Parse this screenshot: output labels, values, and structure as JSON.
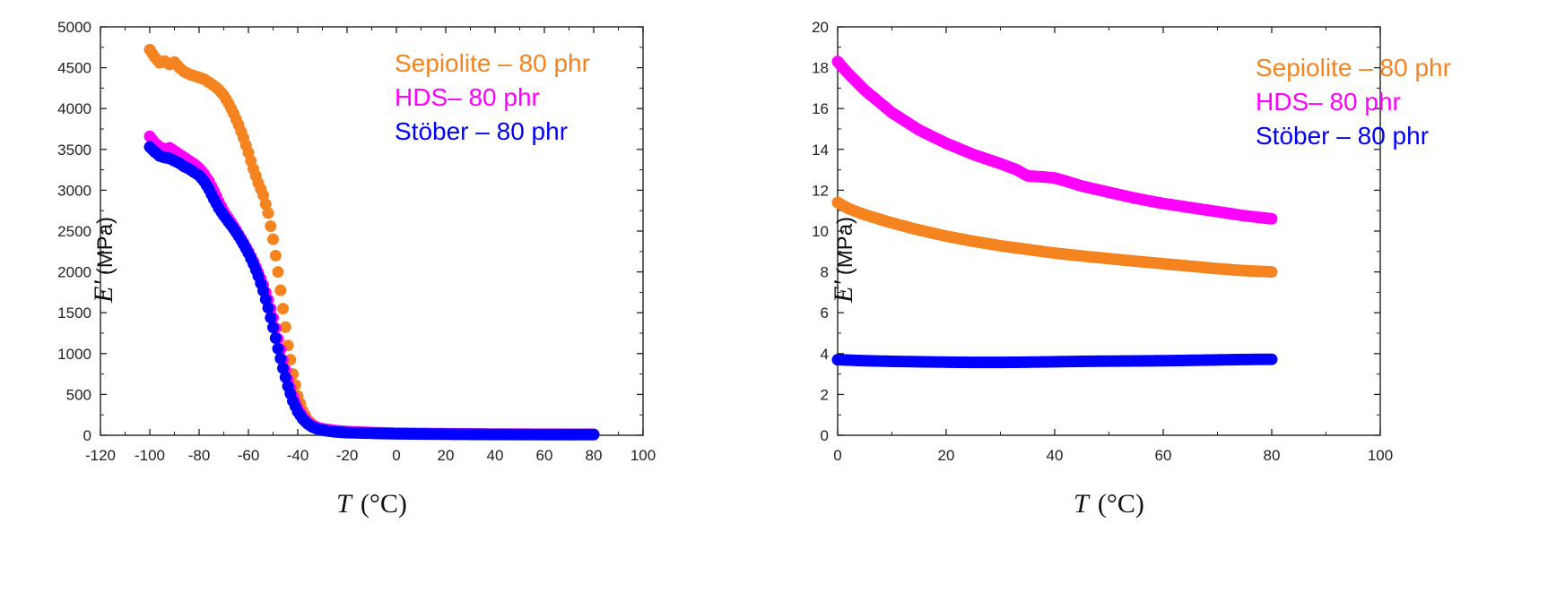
{
  "chart_data": [
    {
      "type": "scatter",
      "xlabel": {
        "symbol": "T",
        "unit": "(°C)"
      },
      "ylabel": {
        "symbol": "E'",
        "unit": "(MPa)"
      },
      "xlim": [
        -120,
        100
      ],
      "ylim": [
        0,
        5000
      ],
      "xticks": [
        -120,
        -100,
        -80,
        -60,
        -40,
        -20,
        0,
        20,
        40,
        60,
        80,
        100
      ],
      "yticks": [
        0,
        500,
        1000,
        1500,
        2000,
        2500,
        3000,
        3500,
        4000,
        4500,
        5000
      ],
      "legend_position": "top-center",
      "series": [
        {
          "name": "Sepiolite – 80 phr",
          "color": "#F5831F",
          "points": [
            [
              -100,
              4720
            ],
            [
              -98,
              4630
            ],
            [
              -96,
              4560
            ],
            [
              -94,
              4580
            ],
            [
              -92,
              4540
            ],
            [
              -90,
              4570
            ],
            [
              -88,
              4500
            ],
            [
              -86,
              4450
            ],
            [
              -84,
              4420
            ],
            [
              -82,
              4400
            ],
            [
              -80,
              4380
            ],
            [
              -78,
              4360
            ],
            [
              -76,
              4320
            ],
            [
              -74,
              4280
            ],
            [
              -72,
              4230
            ],
            [
              -70,
              4160
            ],
            [
              -68,
              4060
            ],
            [
              -66,
              3940
            ],
            [
              -64,
              3800
            ],
            [
              -62,
              3640
            ],
            [
              -60,
              3460
            ],
            [
              -58,
              3260
            ],
            [
              -56,
              3090
            ],
            [
              -54,
              2940
            ],
            [
              -52,
              2720
            ],
            [
              -50,
              2400
            ],
            [
              -48,
              2000
            ],
            [
              -46,
              1550
            ],
            [
              -44,
              1100
            ],
            [
              -42,
              750
            ],
            [
              -40,
              480
            ],
            [
              -38,
              300
            ],
            [
              -36,
              190
            ],
            [
              -34,
              130
            ],
            [
              -32,
              95
            ],
            [
              -30,
              75
            ],
            [
              -25,
              50
            ],
            [
              -20,
              38
            ],
            [
              -10,
              28
            ],
            [
              0,
              22
            ],
            [
              20,
              16
            ],
            [
              40,
              12
            ],
            [
              60,
              10
            ],
            [
              80,
              10
            ]
          ]
        },
        {
          "name": "HDS– 80 phr",
          "color": "#FF00FF",
          "points": [
            [
              -100,
              3660
            ],
            [
              -98,
              3580
            ],
            [
              -96,
              3530
            ],
            [
              -94,
              3500
            ],
            [
              -92,
              3520
            ],
            [
              -90,
              3480
            ],
            [
              -88,
              3440
            ],
            [
              -86,
              3400
            ],
            [
              -84,
              3360
            ],
            [
              -82,
              3320
            ],
            [
              -80,
              3270
            ],
            [
              -78,
              3200
            ],
            [
              -76,
              3110
            ],
            [
              -74,
              2990
            ],
            [
              -72,
              2860
            ],
            [
              -70,
              2740
            ],
            [
              -68,
              2650
            ],
            [
              -66,
              2560
            ],
            [
              -64,
              2460
            ],
            [
              -62,
              2360
            ],
            [
              -60,
              2250
            ],
            [
              -58,
              2130
            ],
            [
              -56,
              1990
            ],
            [
              -54,
              1840
            ],
            [
              -52,
              1660
            ],
            [
              -50,
              1440
            ],
            [
              -48,
              1180
            ],
            [
              -46,
              920
            ],
            [
              -44,
              680
            ],
            [
              -42,
              480
            ],
            [
              -40,
              330
            ],
            [
              -38,
              230
            ],
            [
              -36,
              160
            ],
            [
              -34,
              120
            ],
            [
              -32,
              95
            ],
            [
              -30,
              80
            ],
            [
              -25,
              58
            ],
            [
              -20,
              45
            ],
            [
              -10,
              33
            ],
            [
              0,
              25
            ],
            [
              20,
              18
            ],
            [
              40,
              14
            ],
            [
              60,
              12
            ],
            [
              80,
              11
            ]
          ]
        },
        {
          "name": "Stöber – 80 phr",
          "color": "#0000FF",
          "points": [
            [
              -100,
              3530
            ],
            [
              -98,
              3470
            ],
            [
              -96,
              3420
            ],
            [
              -94,
              3400
            ],
            [
              -92,
              3390
            ],
            [
              -90,
              3360
            ],
            [
              -88,
              3330
            ],
            [
              -86,
              3290
            ],
            [
              -84,
              3260
            ],
            [
              -82,
              3220
            ],
            [
              -80,
              3180
            ],
            [
              -78,
              3110
            ],
            [
              -76,
              3010
            ],
            [
              -74,
              2890
            ],
            [
              -72,
              2780
            ],
            [
              -70,
              2690
            ],
            [
              -68,
              2610
            ],
            [
              -66,
              2530
            ],
            [
              -64,
              2440
            ],
            [
              -62,
              2340
            ],
            [
              -60,
              2230
            ],
            [
              -58,
              2100
            ],
            [
              -56,
              1950
            ],
            [
              -54,
              1770
            ],
            [
              -52,
              1560
            ],
            [
              -50,
              1320
            ],
            [
              -48,
              1060
            ],
            [
              -46,
              820
            ],
            [
              -44,
              600
            ],
            [
              -42,
              420
            ],
            [
              -40,
              290
            ],
            [
              -38,
              200
            ],
            [
              -36,
              140
            ],
            [
              -34,
              100
            ],
            [
              -32,
              78
            ],
            [
              -30,
              62
            ],
            [
              -25,
              42
            ],
            [
              -20,
              32
            ],
            [
              -10,
              24
            ],
            [
              0,
              18
            ],
            [
              20,
              13
            ],
            [
              40,
              10
            ],
            [
              60,
              8
            ],
            [
              80,
              8
            ]
          ]
        }
      ]
    },
    {
      "type": "scatter",
      "xlabel": {
        "symbol": "T",
        "unit": "(°C)"
      },
      "ylabel": {
        "symbol": "E'",
        "unit": "(MPa)"
      },
      "xlim": [
        0,
        100
      ],
      "ylim": [
        0,
        20
      ],
      "xticks": [
        0,
        20,
        40,
        60,
        80,
        100
      ],
      "yticks": [
        0,
        2,
        4,
        6,
        8,
        10,
        12,
        14,
        16,
        18,
        20
      ],
      "legend_position": "top-right",
      "series": [
        {
          "name": "Sepiolite – 80 phr",
          "color": "#F5831F",
          "points": [
            [
              0,
              11.4
            ],
            [
              2,
              11.1
            ],
            [
              5,
              10.8
            ],
            [
              10,
              10.4
            ],
            [
              15,
              10.05
            ],
            [
              20,
              9.75
            ],
            [
              25,
              9.5
            ],
            [
              30,
              9.28
            ],
            [
              35,
              9.1
            ],
            [
              40,
              8.92
            ],
            [
              45,
              8.78
            ],
            [
              50,
              8.65
            ],
            [
              55,
              8.52
            ],
            [
              60,
              8.4
            ],
            [
              65,
              8.28
            ],
            [
              70,
              8.16
            ],
            [
              75,
              8.06
            ],
            [
              80,
              8.0
            ]
          ]
        },
        {
          "name": "HDS– 80 phr",
          "color": "#FF00FF",
          "points": [
            [
              0,
              18.3
            ],
            [
              2,
              17.7
            ],
            [
              5,
              16.9
            ],
            [
              10,
              15.8
            ],
            [
              15,
              14.95
            ],
            [
              20,
              14.3
            ],
            [
              25,
              13.75
            ],
            [
              30,
              13.3
            ],
            [
              33,
              13.0
            ],
            [
              35,
              12.7
            ],
            [
              38,
              12.65
            ],
            [
              40,
              12.6
            ],
            [
              42,
              12.45
            ],
            [
              45,
              12.2
            ],
            [
              50,
              11.9
            ],
            [
              55,
              11.6
            ],
            [
              60,
              11.35
            ],
            [
              65,
              11.15
            ],
            [
              70,
              10.95
            ],
            [
              75,
              10.75
            ],
            [
              80,
              10.6
            ]
          ]
        },
        {
          "name": "Stöber – 80 phr",
          "color": "#0000FF",
          "points": [
            [
              0,
              3.7
            ],
            [
              5,
              3.65
            ],
            [
              10,
              3.62
            ],
            [
              15,
              3.6
            ],
            [
              20,
              3.58
            ],
            [
              25,
              3.57
            ],
            [
              30,
              3.57
            ],
            [
              35,
              3.58
            ],
            [
              40,
              3.6
            ],
            [
              45,
              3.62
            ],
            [
              50,
              3.63
            ],
            [
              55,
              3.64
            ],
            [
              60,
              3.65
            ],
            [
              65,
              3.67
            ],
            [
              70,
              3.69
            ],
            [
              75,
              3.71
            ],
            [
              80,
              3.72
            ]
          ]
        }
      ]
    }
  ]
}
